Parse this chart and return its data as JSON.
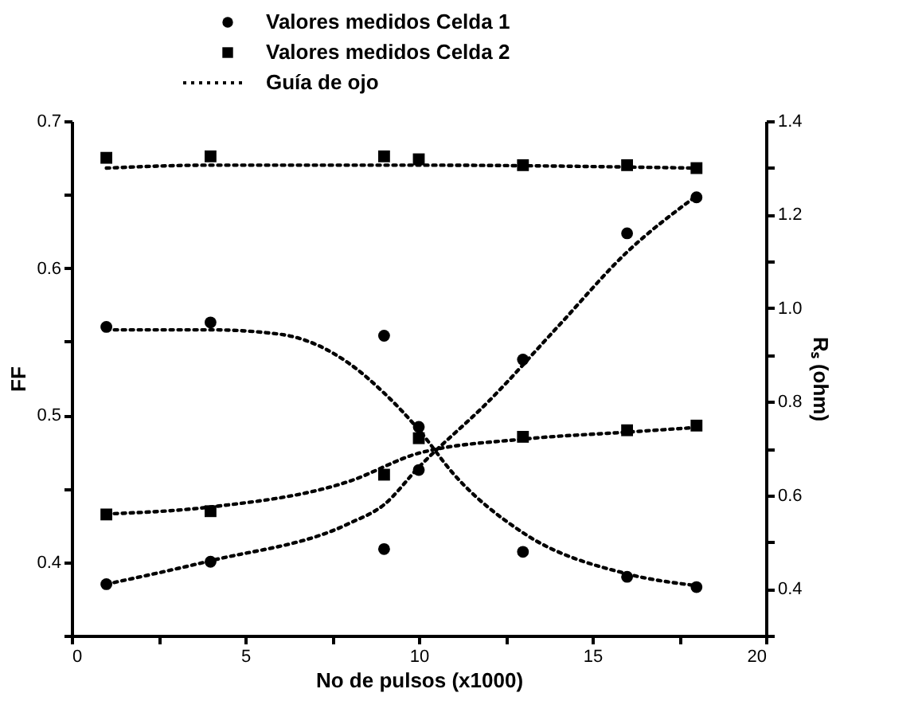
{
  "chart_data": {
    "type": "scatter",
    "xlabel": "No de pulsos (x1000)",
    "ylabel": "FF",
    "y2label": "Rₛ (ohm)",
    "legend": "top",
    "xlim": [
      0,
      20
    ],
    "xticks": [
      0,
      {
        "value": 2.5,
        "label": null
      },
      5,
      {
        "value": 7.5,
        "label": null
      },
      10,
      {
        "value": 12.5,
        "label": null
      },
      15,
      {
        "value": 17.5,
        "label": null
      },
      20
    ],
    "ylim": [
      0.35,
      0.7
    ],
    "yticks": [
      {
        "value": 0.35,
        "label": null
      },
      {
        "value": 0.4,
        "label": "0.4"
      },
      {
        "value": 0.45,
        "label": null
      },
      {
        "value": 0.5,
        "label": "0.5"
      },
      {
        "value": 0.55,
        "label": null
      },
      {
        "value": 0.6,
        "label": "0.6"
      },
      {
        "value": 0.65,
        "label": null
      },
      {
        "value": 0.7,
        "label": "0.7"
      }
    ],
    "y2lim": [
      0.3,
      1.4
    ],
    "y2ticks": [
      {
        "value": 0.3,
        "label": null
      },
      0.4,
      {
        "value": 0.5,
        "label": null
      },
      0.6,
      {
        "value": 0.7,
        "label": null
      },
      0.8,
      {
        "value": 0.9,
        "label": null
      },
      {
        "value": 1,
        "label": "1.0"
      },
      {
        "value": 1.1,
        "label": null
      },
      1.2,
      {
        "value": 1.3,
        "label": null
      },
      1.4
    ],
    "series": [
      {
        "name": "Valores medidos Celda 1",
        "marker": "circle",
        "color": "#000000",
        "x": [
          1,
          4,
          9,
          10,
          13,
          16,
          18
        ],
        "values": [
          0.56,
          0.563,
          0.554,
          0.492,
          0.407,
          0.39,
          0.383
        ]
      },
      {
        "name": "Valores medidos Celda 2",
        "marker": "square",
        "color": "#000000",
        "x": [
          1,
          4,
          9,
          10,
          13,
          16,
          18
        ],
        "values": [
          0.675,
          0.676,
          0.676,
          0.674,
          0.67,
          0.67,
          0.668
        ]
      },
      {
        "marker": "circle",
        "color": "#000000",
        "axis": "y2",
        "x": [
          1,
          4,
          9,
          10,
          13,
          16,
          18
        ],
        "values": [
          0.41,
          0.458,
          0.485,
          0.654,
          0.89,
          1.16,
          1.237
        ]
      },
      {
        "marker": "square",
        "color": "#000000",
        "axis": "y2",
        "x": [
          1,
          4,
          9,
          10,
          13,
          16,
          18
        ],
        "values": [
          0.559,
          0.566,
          0.644,
          0.722,
          0.725,
          0.739,
          0.749
        ]
      },
      {
        "name": "Guía de ojo",
        "type": "line",
        "marker": "none",
        "line_style": "dotted",
        "color": "#000000",
        "x": [
          1,
          4,
          6,
          8,
          9,
          10,
          11,
          13,
          16,
          18
        ],
        "values": [
          0.558,
          0.558,
          0.555,
          0.535,
          0.515,
          0.49,
          0.46,
          0.42,
          0.392,
          0.384
        ]
      },
      {
        "type": "line",
        "marker": "none",
        "line_style": "dotted",
        "color": "#000000",
        "x": [
          1,
          4,
          10,
          18
        ],
        "values": [
          0.668,
          0.67,
          0.67,
          0.668
        ]
      },
      {
        "type": "line",
        "marker": "none",
        "line_style": "dotted",
        "color": "#000000",
        "axis": "y2",
        "x": [
          1,
          4,
          8,
          9,
          10,
          12,
          14,
          16,
          18
        ],
        "values": [
          0.41,
          0.46,
          0.54,
          0.58,
          0.66,
          0.8,
          0.96,
          1.12,
          1.24
        ]
      },
      {
        "type": "line",
        "marker": "none",
        "line_style": "dotted",
        "color": "#000000",
        "axis": "y2",
        "x": [
          1,
          4,
          8,
          10,
          13,
          16,
          18
        ],
        "values": [
          0.56,
          0.575,
          0.63,
          0.69,
          0.72,
          0.735,
          0.745
        ]
      }
    ]
  }
}
